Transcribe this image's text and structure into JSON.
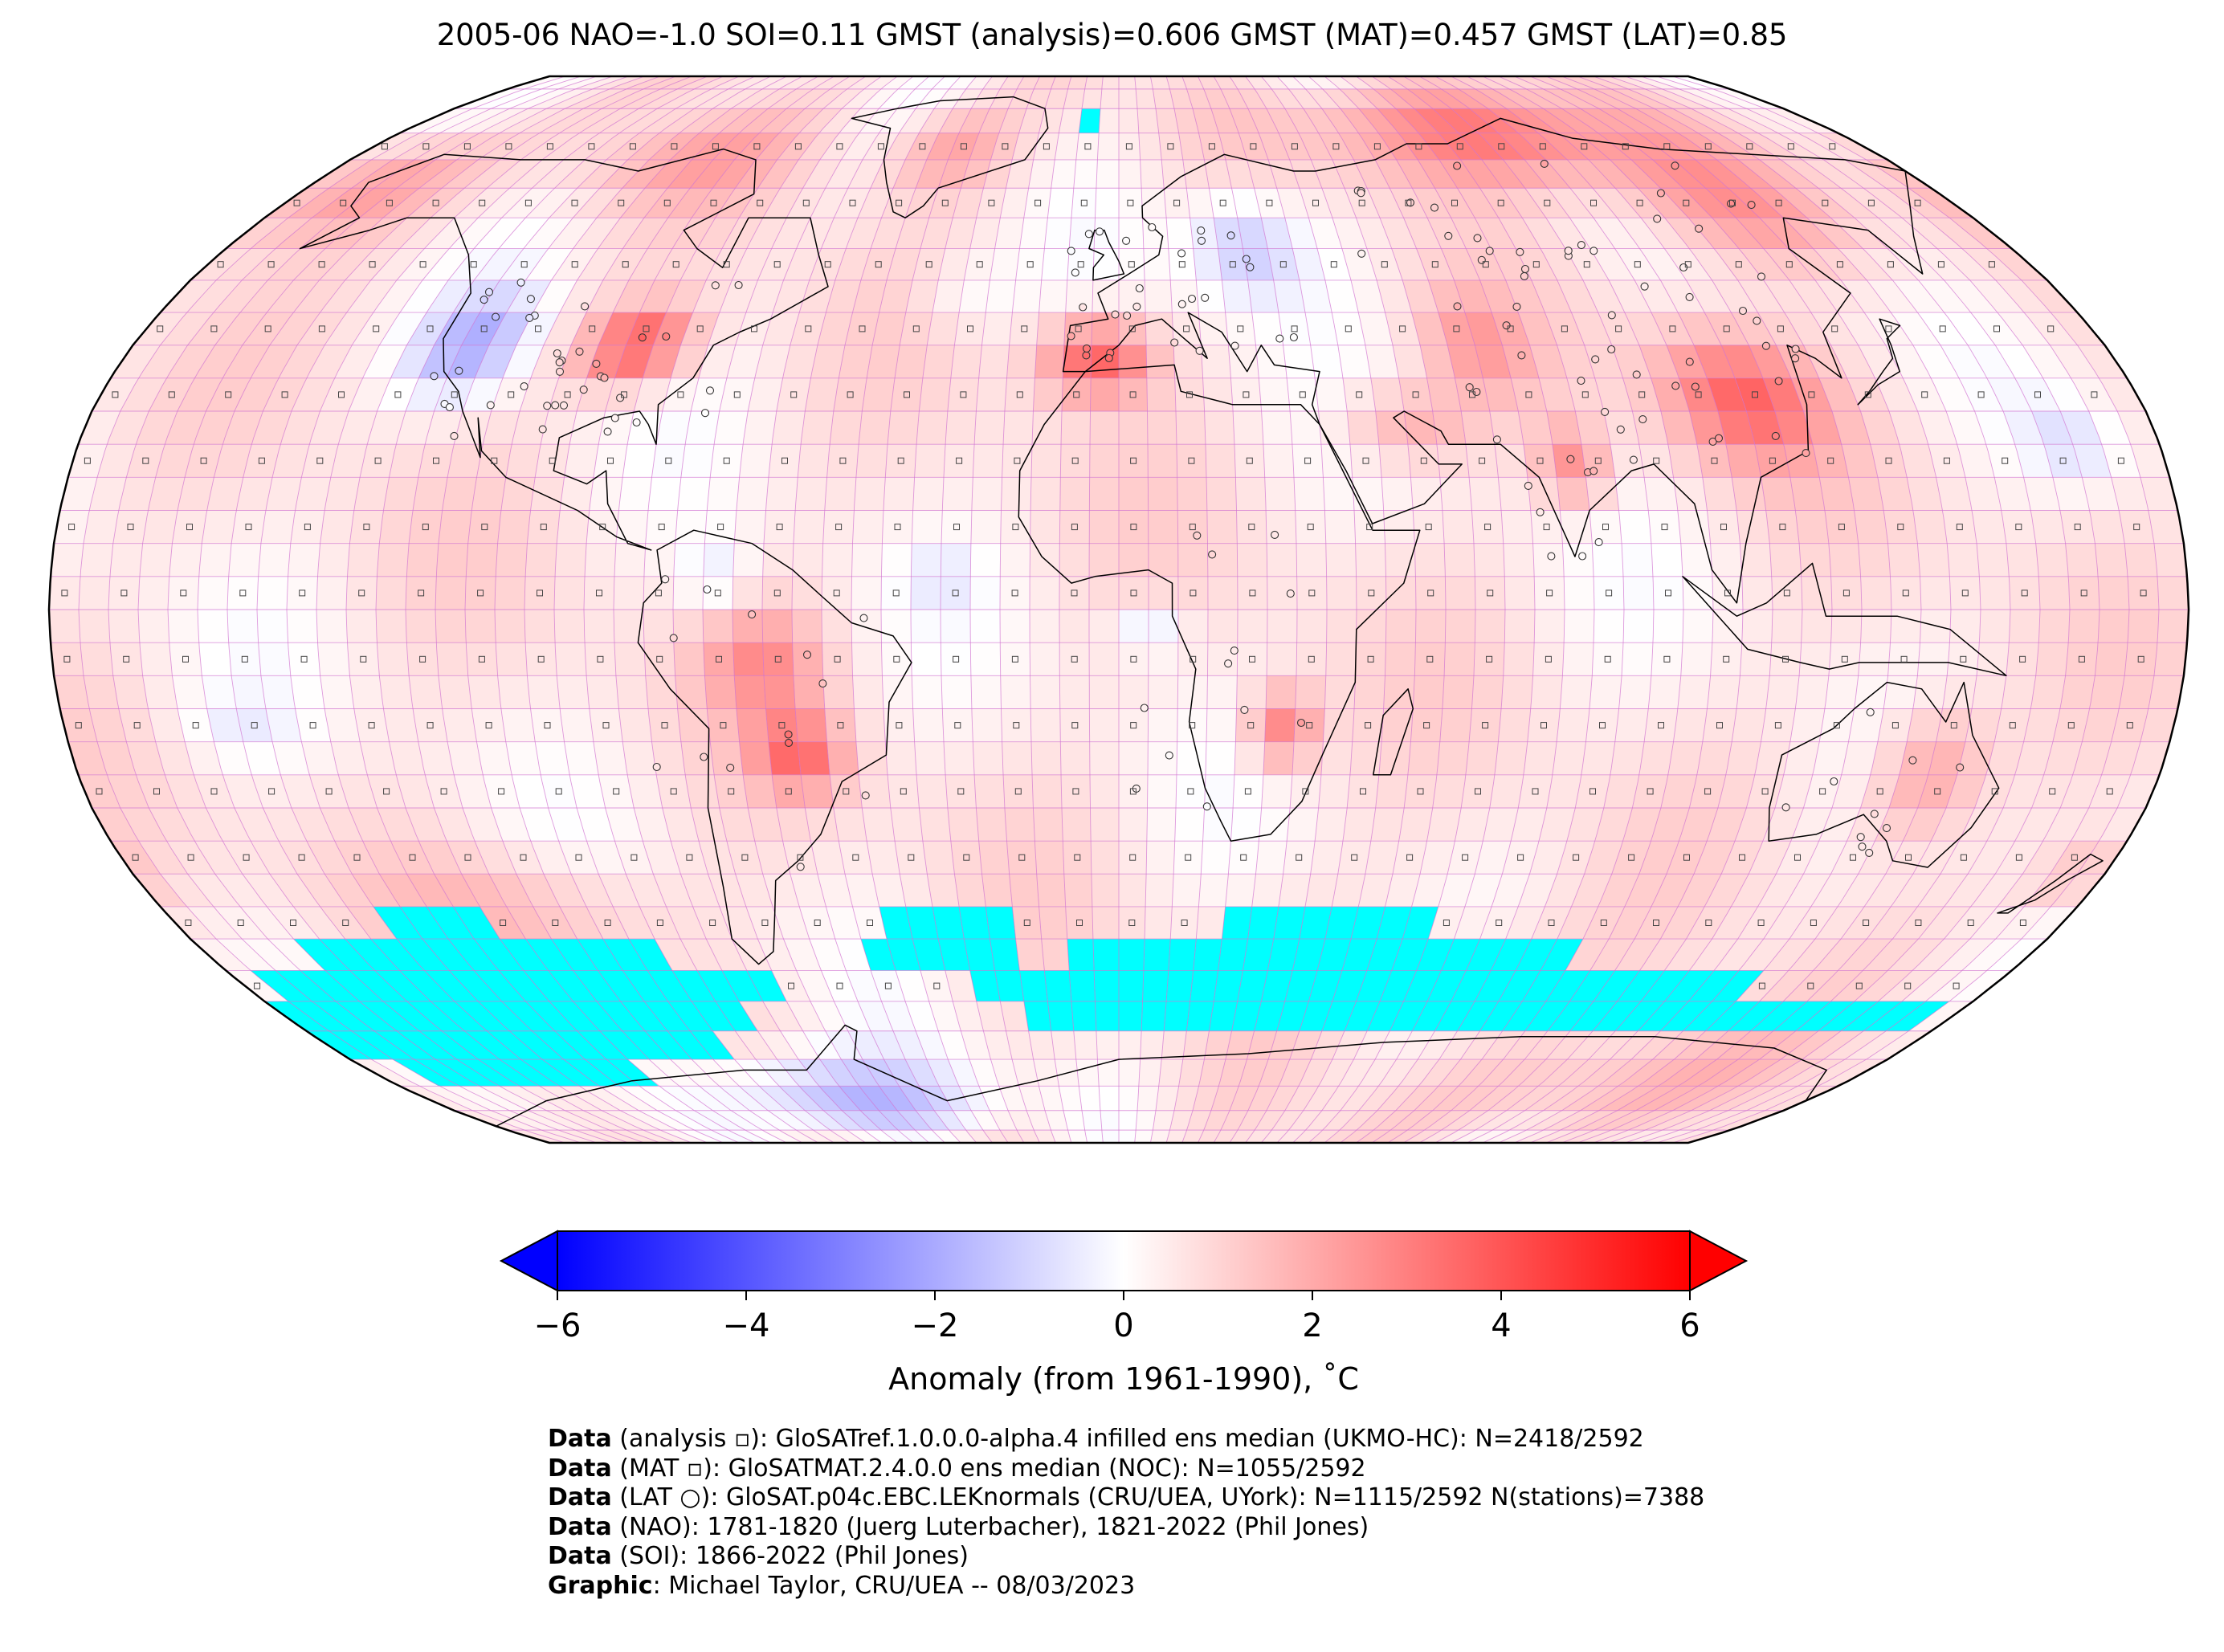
{
  "title": "2005-06 NAO=-1.0 SOI=0.11 GMST (analysis)=0.606 GMST (MAT)=0.457 GMST (LAT)=0.85",
  "map": {
    "projection": "Robinson",
    "grid_resolution_deg": 5,
    "no_data_color": "#00ffff",
    "coastline_color": "#000000",
    "gridline_color": "#d070d0",
    "markers": {
      "analysis": "square",
      "mat": "small square",
      "lat": "circle (station)"
    }
  },
  "colorbar": {
    "cmap": "bwr",
    "vmin": -6,
    "vmax": 6,
    "extend": "both",
    "colors": {
      "low": "#0000ff",
      "mid": "#ffffff",
      "high": "#ff0000"
    },
    "ticks": [
      "−6",
      "−4",
      "−2",
      "0",
      "2",
      "4",
      "6"
    ],
    "tick_values": [
      -6,
      -4,
      -2,
      0,
      2,
      4,
      6
    ],
    "label": "Anomaly (from 1961-1990), ˚C"
  },
  "credits": [
    {
      "key": "Data",
      "text": " (analysis ▫): GloSATref.1.0.0.0-alpha.4 infilled ens median (UKMO-HC): N=2418/2592"
    },
    {
      "key": "Data",
      "text": " (MAT ▫): GloSATMAT.2.4.0.0 ens median (NOC): N=1055/2592"
    },
    {
      "key": "Data",
      "text": " (LAT ○): GloSAT.p04c.EBC.LEKnormals (CRU/UEA, UYork): N=1115/2592 N(stations)=7388"
    },
    {
      "key": "Data",
      "text": " (NAO): 1781-1820 (Juerg Luterbacher), 1821-2022 (Phil Jones)"
    },
    {
      "key": "Data",
      "text": " (SOI): 1866-2022 (Phil Jones)"
    },
    {
      "key": "Graphic",
      "text": ": Michael Taylor, CRU/UEA -- 08/03/2023"
    }
  ]
}
